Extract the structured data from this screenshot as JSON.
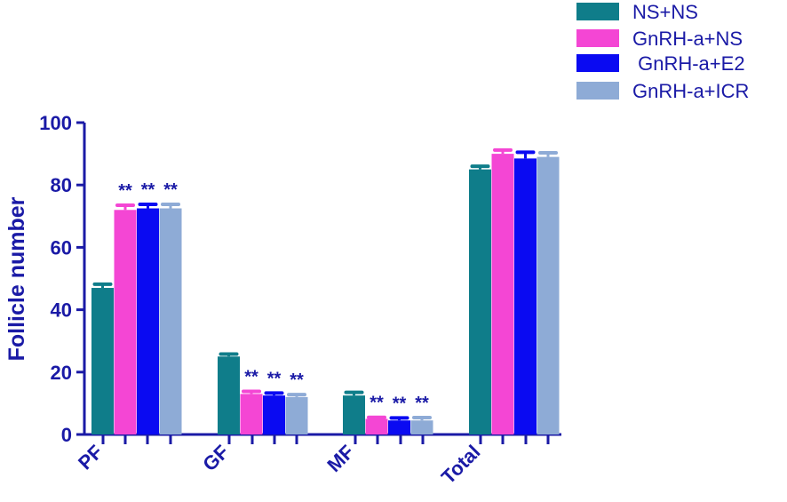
{
  "chart_data": {
    "type": "bar",
    "ylabel": "Follicle number",
    "xlabel": "",
    "ylim": [
      0,
      100
    ],
    "yticks": [
      0,
      20,
      40,
      60,
      80,
      100
    ],
    "categories": [
      "PF",
      "GF",
      "MF",
      "Total"
    ],
    "series": [
      {
        "name": "NS+NS",
        "color": "#0f7d8a",
        "values": [
          47,
          25,
          12.5,
          85
        ],
        "errors": [
          1.2,
          0.8,
          1.0,
          1.0
        ],
        "significance": [
          "",
          "",
          "",
          ""
        ]
      },
      {
        "name": "GnRH-a+NS",
        "color": "#f446d4",
        "values": [
          72,
          13,
          5,
          90
        ],
        "errors": [
          1.5,
          0.8,
          0.5,
          1.2
        ],
        "significance": [
          "**",
          "**",
          "**",
          ""
        ]
      },
      {
        "name": " GnRH-a+E2",
        "color": "#0a0af2",
        "values": [
          72.5,
          12.5,
          4.5,
          88.5
        ],
        "errors": [
          1.3,
          0.8,
          0.8,
          2.0
        ],
        "significance": [
          "**",
          "**",
          "**",
          ""
        ]
      },
      {
        "name": "GnRH-a+ICR",
        "color": "#8eabd6",
        "values": [
          72.5,
          12,
          4.5,
          89
        ],
        "errors": [
          1.3,
          0.8,
          0.9,
          1.3
        ],
        "significance": [
          "**",
          "**",
          "**",
          ""
        ]
      }
    ],
    "legend_position": "top-right",
    "grid": false
  },
  "colors": {
    "axis": "#1a1aa6",
    "text": "#1a1aa6"
  }
}
